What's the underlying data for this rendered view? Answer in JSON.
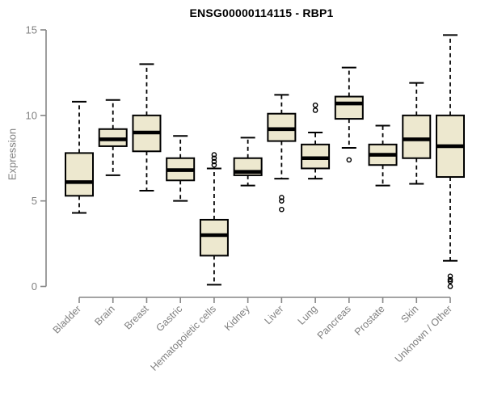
{
  "colors": {
    "box_fill": "#EDE8CF",
    "box_stroke": "#000000",
    "median": "#000000",
    "whisker": "#000000",
    "outlier": "#000000",
    "axis": "#858585",
    "tick_label": "#808080",
    "title": "#000000",
    "background": "#FFFFFF"
  },
  "chart_data": {
    "type": "boxplot",
    "title": "ENSG00000114115 - RBP1",
    "xlabel": "",
    "ylabel": "Expression",
    "ylim": [
      0,
      15
    ],
    "yticks": [
      0,
      5,
      10,
      15
    ],
    "grid": false,
    "legend": false,
    "categories": [
      "Bladder",
      "Brain",
      "Breast",
      "Gastric",
      "Hematopoietic cells",
      "Kidney",
      "Liver",
      "Lung",
      "Pancreas",
      "Prostate",
      "Skin",
      "Unknown / Other"
    ],
    "series": [
      {
        "label": "Bladder",
        "whisker_low": 4.3,
        "q1": 5.3,
        "median": 6.1,
        "q3": 7.8,
        "whisker_high": 10.8,
        "outliers": []
      },
      {
        "label": "Brain",
        "whisker_low": 6.5,
        "q1": 8.2,
        "median": 8.6,
        "q3": 9.2,
        "whisker_high": 10.9,
        "outliers": []
      },
      {
        "label": "Breast",
        "whisker_low": 5.6,
        "q1": 7.9,
        "median": 9.0,
        "q3": 10.0,
        "whisker_high": 13.0,
        "outliers": []
      },
      {
        "label": "Gastric",
        "whisker_low": 5.0,
        "q1": 6.2,
        "median": 6.8,
        "q3": 7.5,
        "whisker_high": 8.8,
        "outliers": []
      },
      {
        "label": "Hematopoietic cells",
        "whisker_low": 0.1,
        "q1": 1.8,
        "median": 3.0,
        "q3": 3.9,
        "whisker_high": 6.9,
        "outliers": [
          7.1,
          7.3,
          7.5,
          7.7
        ]
      },
      {
        "label": "Kidney",
        "whisker_low": 5.9,
        "q1": 6.5,
        "median": 6.7,
        "q3": 7.5,
        "whisker_high": 8.7,
        "outliers": []
      },
      {
        "label": "Liver",
        "whisker_low": 6.3,
        "q1": 8.5,
        "median": 9.2,
        "q3": 10.1,
        "whisker_high": 11.2,
        "outliers": [
          5.2,
          5.0,
          4.5
        ]
      },
      {
        "label": "Lung",
        "whisker_low": 6.3,
        "q1": 6.9,
        "median": 7.5,
        "q3": 8.3,
        "whisker_high": 9.0,
        "outliers": [
          10.6,
          10.3
        ]
      },
      {
        "label": "Pancreas",
        "whisker_low": 8.1,
        "q1": 9.8,
        "median": 10.7,
        "q3": 11.1,
        "whisker_high": 12.8,
        "outliers": [
          7.4
        ]
      },
      {
        "label": "Prostate",
        "whisker_low": 5.9,
        "q1": 7.1,
        "median": 7.7,
        "q3": 8.3,
        "whisker_high": 9.4,
        "outliers": []
      },
      {
        "label": "Skin",
        "whisker_low": 6.0,
        "q1": 7.5,
        "median": 8.6,
        "q3": 10.0,
        "whisker_high": 11.9,
        "outliers": []
      },
      {
        "label": "Unknown / Other",
        "whisker_low": 1.5,
        "q1": 6.4,
        "median": 8.2,
        "q3": 10.0,
        "whisker_high": 14.7,
        "outliers": [
          0.6,
          0.4,
          0.3,
          0.0
        ]
      }
    ]
  }
}
